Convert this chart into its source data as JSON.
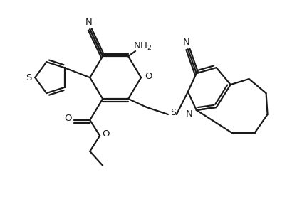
{
  "background": "#ffffff",
  "line_color": "#1a1a1a",
  "line_width": 1.6,
  "figsize": [
    4.24,
    2.94
  ],
  "dpi": 100,
  "xlim": [
    0,
    10.5
  ],
  "ylim": [
    0,
    7.3
  ]
}
